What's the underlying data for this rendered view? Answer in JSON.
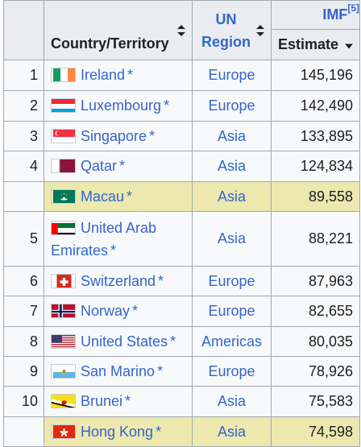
{
  "table": {
    "header": {
      "country": "Country/Territory",
      "region": "UN Region",
      "imf": "IMF",
      "imf_ref": "5",
      "estimate": "Estimate"
    },
    "rows": [
      {
        "rank": "1",
        "country": "Ireland",
        "star": "*",
        "region": "Europe",
        "estimate": "145,196",
        "highlight": false,
        "flag": "ireland-flag-icon"
      },
      {
        "rank": "2",
        "country": "Luxembourg",
        "star": "*",
        "region": "Europe",
        "estimate": "142,490",
        "highlight": false,
        "flag": "luxembourg-flag-icon"
      },
      {
        "rank": "3",
        "country": "Singapore",
        "star": "*",
        "region": "Asia",
        "estimate": "133,895",
        "highlight": false,
        "flag": "singapore-flag-icon"
      },
      {
        "rank": "4",
        "country": "Qatar",
        "star": "*",
        "region": "Asia",
        "estimate": "124,834",
        "highlight": false,
        "flag": "qatar-flag-icon"
      },
      {
        "rank": "",
        "country": "Macau",
        "star": "*",
        "region": "Asia",
        "estimate": "89,558",
        "highlight": true,
        "flag": "macau-flag-icon"
      },
      {
        "rank": "5",
        "country": "United Arab Emirates",
        "star": "*",
        "region": "Asia",
        "estimate": "88,221",
        "highlight": false,
        "flag": "uae-flag-icon"
      },
      {
        "rank": "6",
        "country": "Switzerland",
        "star": "*",
        "region": "Europe",
        "estimate": "87,963",
        "highlight": false,
        "flag": "switzerland-flag-icon"
      },
      {
        "rank": "7",
        "country": "Norway",
        "star": "*",
        "region": "Europe",
        "estimate": "82,655",
        "highlight": false,
        "flag": "norway-flag-icon"
      },
      {
        "rank": "8",
        "country": "United States",
        "star": "*",
        "region": "Americas",
        "estimate": "80,035",
        "highlight": false,
        "flag": "usa-flag-icon"
      },
      {
        "rank": "9",
        "country": "San Marino",
        "star": "*",
        "region": "Europe",
        "estimate": "78,926",
        "highlight": false,
        "flag": "san-marino-flag-icon"
      },
      {
        "rank": "10",
        "country": "Brunei",
        "star": "*",
        "region": "Asia",
        "estimate": "75,583",
        "highlight": false,
        "flag": "brunei-flag-icon"
      },
      {
        "rank": "",
        "country": "Hong Kong",
        "star": "*",
        "region": "Asia",
        "estimate": "74,598",
        "highlight": true,
        "flag": "hong-kong-flag-icon"
      }
    ]
  },
  "colors": {
    "link": "#3366cc",
    "header_bg": "#eaecf0",
    "cell_bg": "#f8f9fa",
    "highlight_bg": "#ece8ae",
    "border": "#a2a9b1"
  }
}
